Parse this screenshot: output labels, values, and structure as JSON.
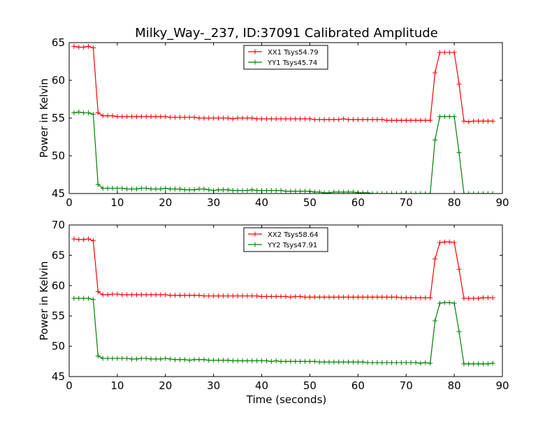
{
  "figure": {
    "title": "Milky_Way-_237, ID:37091 Calibrated Amplitude",
    "xlabel": "Time (seconds)"
  },
  "chart_data": [
    {
      "type": "line",
      "ylabel": "Power in Kelvin",
      "xlim": [
        0,
        90
      ],
      "ylim": [
        45,
        65
      ],
      "xticks": [
        0,
        10,
        20,
        30,
        40,
        50,
        60,
        70,
        80,
        90
      ],
      "yticks": [
        45,
        50,
        55,
        60,
        65
      ],
      "legend_position": "top-center",
      "grid": false,
      "series": [
        {
          "name": "XX1 Tsys54.79",
          "color": "#ff0000",
          "x": [
            1,
            2,
            3,
            4,
            5,
            6,
            7,
            8,
            9,
            10,
            11,
            12,
            13,
            14,
            15,
            16,
            17,
            18,
            19,
            20,
            21,
            22,
            23,
            24,
            25,
            26,
            27,
            28,
            29,
            30,
            31,
            32,
            33,
            34,
            35,
            36,
            37,
            38,
            39,
            40,
            41,
            42,
            43,
            44,
            45,
            46,
            47,
            48,
            49,
            50,
            51,
            52,
            53,
            54,
            55,
            56,
            57,
            58,
            59,
            60,
            61,
            62,
            63,
            64,
            65,
            66,
            67,
            68,
            69,
            70,
            71,
            72,
            73,
            74,
            75,
            76,
            77,
            78,
            79,
            80,
            81,
            82,
            83,
            84,
            85,
            86,
            87,
            88
          ],
          "y": [
            64.5,
            64.4,
            64.4,
            64.5,
            64.3,
            55.7,
            55.3,
            55.3,
            55.3,
            55.2,
            55.2,
            55.2,
            55.2,
            55.2,
            55.2,
            55.2,
            55.2,
            55.2,
            55.2,
            55.2,
            55.1,
            55.1,
            55.1,
            55.1,
            55.1,
            55.1,
            55.0,
            55.0,
            55.0,
            55.0,
            55.0,
            55.0,
            55.0,
            54.9,
            55.0,
            55.0,
            55.0,
            55.0,
            54.9,
            54.9,
            54.9,
            54.9,
            54.9,
            54.9,
            54.9,
            54.9,
            54.9,
            54.9,
            54.9,
            54.9,
            54.8,
            54.8,
            54.8,
            54.8,
            54.8,
            54.8,
            54.9,
            54.8,
            54.8,
            54.8,
            54.8,
            54.8,
            54.8,
            54.8,
            54.8,
            54.7,
            54.7,
            54.7,
            54.7,
            54.7,
            54.7,
            54.7,
            54.7,
            54.7,
            54.7,
            61.0,
            63.7,
            63.7,
            63.7,
            63.7,
            59.5,
            54.6,
            54.5,
            54.6,
            54.6,
            54.6,
            54.6,
            54.6
          ]
        },
        {
          "name": "YY1 Tsys45.74",
          "color": "#008000",
          "x": [
            1,
            2,
            3,
            4,
            5,
            6,
            7,
            8,
            9,
            10,
            11,
            12,
            13,
            14,
            15,
            16,
            17,
            18,
            19,
            20,
            21,
            22,
            23,
            24,
            25,
            26,
            27,
            28,
            29,
            30,
            31,
            32,
            33,
            34,
            35,
            36,
            37,
            38,
            39,
            40,
            41,
            42,
            43,
            44,
            45,
            46,
            47,
            48,
            49,
            50,
            51,
            52,
            53,
            54,
            55,
            56,
            57,
            58,
            59,
            60,
            61,
            62,
            63,
            64,
            65,
            66,
            67,
            68,
            69,
            70,
            71,
            72,
            73,
            74,
            75,
            76,
            77,
            78,
            79,
            80,
            81,
            82,
            83,
            84,
            85,
            86,
            87,
            88
          ],
          "y": [
            55.7,
            55.8,
            55.7,
            55.7,
            55.5,
            46.2,
            45.7,
            45.7,
            45.7,
            45.7,
            45.7,
            45.6,
            45.6,
            45.6,
            45.7,
            45.7,
            45.6,
            45.6,
            45.6,
            45.7,
            45.6,
            45.6,
            45.6,
            45.5,
            45.5,
            45.5,
            45.6,
            45.6,
            45.5,
            45.4,
            45.5,
            45.5,
            45.5,
            45.4,
            45.4,
            45.4,
            45.4,
            45.5,
            45.4,
            45.4,
            45.4,
            45.4,
            45.4,
            45.4,
            45.3,
            45.3,
            45.3,
            45.3,
            45.3,
            45.3,
            45.2,
            45.2,
            45.1,
            45.1,
            45.2,
            45.2,
            45.2,
            45.2,
            45.2,
            45.1,
            45.1,
            45.1,
            45.0,
            45.0,
            45.0,
            45.0,
            45.0,
            45.0,
            45.0,
            45.0,
            45.0,
            45.0,
            45.0,
            45.0,
            45.0,
            52.1,
            55.2,
            55.2,
            55.2,
            55.2,
            50.4,
            45.0,
            45.0,
            45.0,
            45.0,
            45.0,
            45.0,
            45.0
          ]
        }
      ]
    },
    {
      "type": "line",
      "ylabel": "Power in Kelvin",
      "xlim": [
        0,
        90
      ],
      "ylim": [
        45,
        70
      ],
      "xticks": [
        0,
        10,
        20,
        30,
        40,
        50,
        60,
        70,
        80,
        90
      ],
      "yticks": [
        45,
        50,
        55,
        60,
        65,
        70
      ],
      "legend_position": "top-center",
      "grid": false,
      "series": [
        {
          "name": "XX2 Tsys58.64",
          "color": "#ff0000",
          "x": [
            1,
            2,
            3,
            4,
            5,
            6,
            7,
            8,
            9,
            10,
            11,
            12,
            13,
            14,
            15,
            16,
            17,
            18,
            19,
            20,
            21,
            22,
            23,
            24,
            25,
            26,
            27,
            28,
            29,
            30,
            31,
            32,
            33,
            34,
            35,
            36,
            37,
            38,
            39,
            40,
            41,
            42,
            43,
            44,
            45,
            46,
            47,
            48,
            49,
            50,
            51,
            52,
            53,
            54,
            55,
            56,
            57,
            58,
            59,
            60,
            61,
            62,
            63,
            64,
            65,
            66,
            67,
            68,
            69,
            70,
            71,
            72,
            73,
            74,
            75,
            76,
            77,
            78,
            79,
            80,
            81,
            82,
            83,
            84,
            85,
            86,
            87,
            88
          ],
          "y": [
            67.7,
            67.6,
            67.6,
            67.7,
            67.4,
            59.0,
            58.5,
            58.5,
            58.6,
            58.6,
            58.5,
            58.5,
            58.5,
            58.5,
            58.5,
            58.5,
            58.5,
            58.5,
            58.5,
            58.5,
            58.4,
            58.4,
            58.4,
            58.4,
            58.4,
            58.4,
            58.4,
            58.3,
            58.3,
            58.3,
            58.3,
            58.3,
            58.3,
            58.3,
            58.3,
            58.3,
            58.3,
            58.3,
            58.3,
            58.2,
            58.2,
            58.2,
            58.2,
            58.2,
            58.2,
            58.1,
            58.2,
            58.2,
            58.1,
            58.1,
            58.1,
            58.1,
            58.1,
            58.1,
            58.1,
            58.1,
            58.1,
            58.1,
            58.1,
            58.1,
            58.1,
            58.1,
            58.1,
            58.1,
            58.1,
            58.1,
            58.1,
            58.1,
            58.0,
            58.0,
            58.0,
            58.0,
            58.0,
            58.0,
            58.0,
            64.4,
            67.1,
            67.2,
            67.2,
            67.1,
            62.7,
            57.9,
            57.9,
            57.9,
            57.9,
            58.0,
            58.0,
            58.0
          ]
        },
        {
          "name": "YY2 Tsys47.91",
          "color": "#008000",
          "x": [
            1,
            2,
            3,
            4,
            5,
            6,
            7,
            8,
            9,
            10,
            11,
            12,
            13,
            14,
            15,
            16,
            17,
            18,
            19,
            20,
            21,
            22,
            23,
            24,
            25,
            26,
            27,
            28,
            29,
            30,
            31,
            32,
            33,
            34,
            35,
            36,
            37,
            38,
            39,
            40,
            41,
            42,
            43,
            44,
            45,
            46,
            47,
            48,
            49,
            50,
            51,
            52,
            53,
            54,
            55,
            56,
            57,
            58,
            59,
            60,
            61,
            62,
            63,
            64,
            65,
            66,
            67,
            68,
            69,
            70,
            71,
            72,
            73,
            74,
            75,
            76,
            77,
            78,
            79,
            80,
            81,
            82,
            83,
            84,
            85,
            86,
            87,
            88
          ],
          "y": [
            57.9,
            57.9,
            57.9,
            57.9,
            57.7,
            48.4,
            48.0,
            48.0,
            48.0,
            48.0,
            48.0,
            48.0,
            47.9,
            47.9,
            48.0,
            48.0,
            47.9,
            47.9,
            47.9,
            48.0,
            47.9,
            47.8,
            47.8,
            47.8,
            47.7,
            47.8,
            47.8,
            47.8,
            47.7,
            47.7,
            47.7,
            47.7,
            47.7,
            47.6,
            47.6,
            47.6,
            47.6,
            47.6,
            47.6,
            47.6,
            47.6,
            47.5,
            47.6,
            47.5,
            47.5,
            47.5,
            47.5,
            47.5,
            47.5,
            47.5,
            47.5,
            47.4,
            47.4,
            47.4,
            47.4,
            47.4,
            47.4,
            47.4,
            47.4,
            47.4,
            47.4,
            47.3,
            47.3,
            47.3,
            47.3,
            47.3,
            47.3,
            47.3,
            47.3,
            47.3,
            47.3,
            47.3,
            47.2,
            47.3,
            47.2,
            54.2,
            57.1,
            57.2,
            57.2,
            57.1,
            52.4,
            47.1,
            47.1,
            47.1,
            47.1,
            47.1,
            47.1,
            47.2
          ]
        }
      ]
    }
  ]
}
